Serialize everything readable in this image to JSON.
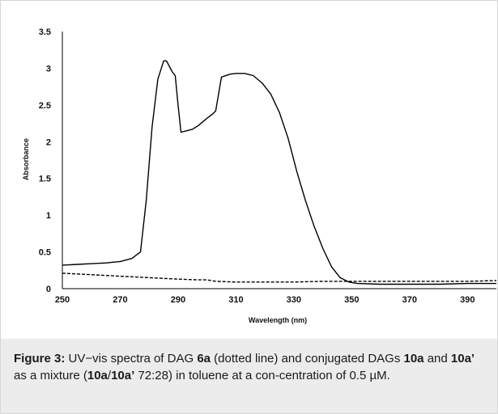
{
  "chart_data": {
    "type": "line",
    "title": "",
    "xlabel": "Wavelength (nm)",
    "ylabel": "Absorbance",
    "xlim": [
      250,
      400
    ],
    "ylim": [
      0,
      3.5
    ],
    "x_ticks": [
      "250",
      "270",
      "290",
      "310",
      "330",
      "350",
      "370",
      "390"
    ],
    "y_ticks": [
      "0",
      "0.5",
      "1",
      "1.5",
      "2",
      "2.5",
      "3",
      "3.5"
    ],
    "grid": false,
    "legend": "none",
    "series": [
      {
        "style": "solid",
        "color": "#000000",
        "points": [
          [
            250,
            0.32
          ],
          [
            255,
            0.33
          ],
          [
            260,
            0.34
          ],
          [
            265,
            0.35
          ],
          [
            270,
            0.37
          ],
          [
            274,
            0.41
          ],
          [
            277,
            0.5
          ],
          [
            279,
            1.2
          ],
          [
            281,
            2.2
          ],
          [
            283,
            2.85
          ],
          [
            285,
            3.1
          ],
          [
            286,
            3.1
          ],
          [
            288,
            2.95
          ],
          [
            289,
            2.9
          ],
          [
            290,
            2.5
          ],
          [
            291,
            2.13
          ],
          [
            293,
            2.15
          ],
          [
            295,
            2.17
          ],
          [
            297,
            2.22
          ],
          [
            300,
            2.32
          ],
          [
            302,
            2.38
          ],
          [
            303,
            2.42
          ],
          [
            305,
            2.88
          ],
          [
            308,
            2.92
          ],
          [
            310,
            2.93
          ],
          [
            313,
            2.93
          ],
          [
            316,
            2.9
          ],
          [
            319,
            2.8
          ],
          [
            322,
            2.65
          ],
          [
            325,
            2.4
          ],
          [
            328,
            2.05
          ],
          [
            331,
            1.6
          ],
          [
            334,
            1.2
          ],
          [
            337,
            0.85
          ],
          [
            340,
            0.55
          ],
          [
            343,
            0.3
          ],
          [
            346,
            0.15
          ],
          [
            349,
            0.09
          ],
          [
            352,
            0.07
          ],
          [
            360,
            0.06
          ],
          [
            370,
            0.06
          ],
          [
            380,
            0.06
          ],
          [
            390,
            0.07
          ],
          [
            400,
            0.07
          ]
        ]
      },
      {
        "style": "dotted",
        "color": "#000000",
        "points": [
          [
            250,
            0.21
          ],
          [
            260,
            0.19
          ],
          [
            270,
            0.17
          ],
          [
            280,
            0.15
          ],
          [
            290,
            0.13
          ],
          [
            297,
            0.12
          ],
          [
            300,
            0.12
          ],
          [
            303,
            0.1
          ],
          [
            310,
            0.09
          ],
          [
            320,
            0.09
          ],
          [
            330,
            0.09
          ],
          [
            340,
            0.1
          ],
          [
            350,
            0.1
          ],
          [
            360,
            0.1
          ],
          [
            370,
            0.1
          ],
          [
            380,
            0.1
          ],
          [
            390,
            0.1
          ],
          [
            400,
            0.11
          ]
        ]
      }
    ]
  },
  "caption": {
    "figure_label": "Figure 3:",
    "text_1": " UV−vis spectra of DAG ",
    "bold_1": "6a",
    "text_2": " (dotted line) and conjugated DAGs ",
    "bold_2": "10a",
    "text_3": " and ",
    "bold_3": "10a’",
    "text_4": " as a mixture (",
    "bold_4": "10a",
    "text_5": "/",
    "bold_5": "10a’",
    "text_6": " 72:28) in toluene at a con-centration of 0.5 µM."
  }
}
